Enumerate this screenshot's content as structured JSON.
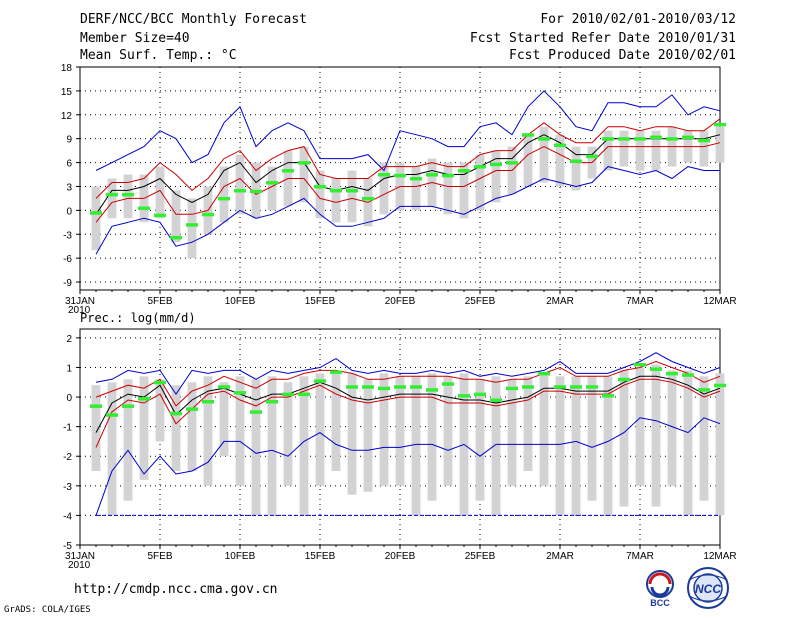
{
  "header": {
    "title": "DERF/NCC/BCC Monthly Forecast",
    "member_size": "Member Size=40",
    "variable": "Mean Surf. Temp.: °C",
    "period": "For 2010/02/01-2010/03/12",
    "started": "Fcst Started Refer Date 2010/01/31",
    "produced": "Fcst Produced Date 2010/02/01"
  },
  "footer": {
    "url": "http://cmdp.ncc.cma.gov.cn",
    "grads": "GrADS: COLA/IGES",
    "logo_bcc": "BCC",
    "logo_ncc": "NCC"
  },
  "colors": {
    "envelope": "#0000cc",
    "spread": "#cc0000",
    "mean": "#000000",
    "box": "#d3d3d6",
    "median": "#33ee33"
  },
  "chart_data": [
    {
      "type": "box_ensemble",
      "title": "Mean Surf. Temp.: °C",
      "ylim": [
        -10,
        18
      ],
      "yticks": [
        -9,
        -6,
        -3,
        0,
        3,
        6,
        9,
        12,
        15,
        18
      ],
      "xlim_days": [
        0,
        40
      ],
      "xtick_days": [
        0,
        5,
        10,
        15,
        20,
        25,
        30,
        35,
        40
      ],
      "xtick_labels": [
        "31JAN",
        "5FEB",
        "10FEB",
        "15FEB",
        "20FEB",
        "25FEB",
        "2MAR",
        "7MAR",
        "12MAR"
      ],
      "year_label": "2010",
      "days": [
        1,
        2,
        3,
        4,
        5,
        6,
        7,
        8,
        9,
        10,
        11,
        12,
        13,
        14,
        15,
        16,
        17,
        18,
        19,
        20,
        21,
        22,
        23,
        24,
        25,
        26,
        27,
        28,
        29,
        30,
        31,
        32,
        33,
        34,
        35,
        36,
        37,
        38,
        39,
        40
      ],
      "max": [
        5,
        6,
        7,
        8,
        10,
        9,
        6,
        7,
        11,
        13,
        8,
        10,
        11,
        10,
        6.5,
        6.5,
        6.5,
        7,
        5,
        10,
        9.5,
        9,
        8,
        8,
        10.5,
        11,
        9.5,
        13,
        15,
        13,
        10.5,
        10,
        13.5,
        13.5,
        13,
        13,
        14.5,
        12,
        13,
        12.5
      ],
      "min": [
        -5.5,
        -2,
        -1.5,
        -1,
        -1.5,
        -4.5,
        -4,
        -3,
        -1.5,
        0,
        -1,
        -0.5,
        0.5,
        1.5,
        -0.5,
        -2,
        -2,
        -1.5,
        -1,
        0.5,
        0.5,
        0.5,
        0,
        -0.5,
        0.5,
        1.5,
        2,
        3,
        4,
        3.5,
        3,
        3.5,
        5.5,
        5,
        4.5,
        5,
        4,
        5.5,
        5,
        5
      ],
      "upper": [
        1.5,
        3.5,
        3.5,
        4,
        6,
        4.5,
        2.5,
        4,
        6.5,
        7.5,
        5,
        6.5,
        7.5,
        8,
        4.5,
        4,
        4,
        4,
        5.5,
        5.5,
        5.5,
        6,
        5.5,
        5.5,
        7,
        7.5,
        7.5,
        9.5,
        11,
        9.5,
        8.5,
        8.5,
        10.5,
        10.5,
        10,
        10.5,
        10.5,
        10,
        10,
        11.5
      ],
      "mean": [
        -0.5,
        2.5,
        2.5,
        3,
        4,
        2,
        1,
        2,
        5,
        6,
        3.5,
        5,
        6,
        6,
        3,
        2.5,
        3,
        2.5,
        4,
        4.5,
        4.5,
        5,
        4.5,
        4.5,
        5.5,
        6.5,
        6.5,
        8.5,
        9.5,
        8.5,
        7,
        7,
        9,
        9,
        9,
        9,
        9,
        9,
        9,
        9.5
      ],
      "lower": [
        -1.5,
        1,
        1.5,
        1.5,
        2.5,
        -0.5,
        -0.5,
        0,
        3,
        4,
        2,
        3,
        4,
        4,
        1.5,
        1,
        1.5,
        1,
        2,
        3,
        3,
        3.5,
        3,
        3,
        4,
        5,
        5,
        7,
        8,
        7,
        6,
        6,
        8,
        8,
        8,
        8,
        8,
        8,
        8,
        8.5
      ],
      "box_top": [
        3,
        4,
        4.5,
        4.5,
        5.5,
        2.5,
        1.5,
        3,
        5.5,
        7,
        6,
        5.5,
        7.5,
        8,
        5,
        4,
        5,
        4,
        6,
        6,
        5.5,
        6.5,
        6,
        6,
        7,
        7.5,
        8,
        9.5,
        10.5,
        9.5,
        8,
        8,
        10,
        10,
        10,
        10,
        10.5,
        10,
        10,
        10.5
      ],
      "box_bottom": [
        -5,
        -1,
        -1,
        -1.5,
        -1,
        -4,
        -6,
        -3,
        -1.5,
        -0.5,
        -1,
        0,
        0.5,
        1,
        -1,
        -1.5,
        -1.5,
        -2,
        -0.5,
        0,
        0,
        0.5,
        -0.5,
        -1,
        0,
        1,
        2,
        3,
        3.5,
        3,
        2.5,
        4,
        5,
        5.5,
        5,
        5,
        5.5,
        6,
        5.5,
        6
      ],
      "median": [
        -0.3,
        2,
        2,
        0.3,
        -0.6,
        -3.4,
        -1.8,
        -0.5,
        1.5,
        2.5,
        2.4,
        3.5,
        5,
        6,
        3,
        2.5,
        2.5,
        1.5,
        4.5,
        4.4,
        4,
        4.5,
        4.4,
        5,
        5.5,
        5.8,
        6,
        9.5,
        9,
        8.2,
        6.2,
        6.8,
        9,
        9,
        9,
        9.2,
        9,
        9.2,
        8.8,
        10.8
      ]
    },
    {
      "type": "box_ensemble",
      "title": "Prec.: log(mm/d)",
      "ylim": [
        -5,
        2.3
      ],
      "yticks": [
        -5,
        -4,
        -3,
        -2,
        -1,
        0,
        1,
        2
      ],
      "xlim_days": [
        0,
        40
      ],
      "xtick_days": [
        0,
        5,
        10,
        15,
        20,
        25,
        30,
        35,
        40
      ],
      "xtick_labels": [
        "31JAN",
        "5FEB",
        "10FEB",
        "15FEB",
        "20FEB",
        "25FEB",
        "2MAR",
        "7MAR",
        "12MAR"
      ],
      "year_label": "2010",
      "days": [
        1,
        2,
        3,
        4,
        5,
        6,
        7,
        8,
        9,
        10,
        11,
        12,
        13,
        14,
        15,
        16,
        17,
        18,
        19,
        20,
        21,
        22,
        23,
        24,
        25,
        26,
        27,
        28,
        29,
        30,
        31,
        32,
        33,
        34,
        35,
        36,
        37,
        38,
        39,
        40
      ],
      "max": [
        0.5,
        0.6,
        0.9,
        0.8,
        0.9,
        0.1,
        0.9,
        0.8,
        0.9,
        0.9,
        0.6,
        0.9,
        0.8,
        0.9,
        1.0,
        1.3,
        0.9,
        0.8,
        0.9,
        0.8,
        0.8,
        0.9,
        0.8,
        0.9,
        0.7,
        0.8,
        0.7,
        0.8,
        0.9,
        1.2,
        0.8,
        0.8,
        0.8,
        1.0,
        1.2,
        1.5,
        1.2,
        1.0,
        0.8,
        1.0
      ],
      "min": [
        -4,
        -2.5,
        -1.8,
        -2.6,
        -2.0,
        -2.6,
        -2.5,
        -2.2,
        -1.5,
        -1.5,
        -1.9,
        -1.8,
        -2.0,
        -1.5,
        -1.2,
        -1.6,
        -1.8,
        -1.8,
        -1.7,
        -1.7,
        -1.6,
        -1.6,
        -1.8,
        -1.6,
        -2.0,
        -1.6,
        -1.6,
        -1.6,
        -1.6,
        -1.6,
        -1.5,
        -1.7,
        -1.5,
        -1.2,
        -0.7,
        -0.8,
        -1.0,
        -1.2,
        -0.7,
        -0.9
      ],
      "upper": [
        0,
        0.2,
        0.4,
        0.3,
        0.6,
        -0.3,
        0.2,
        0.4,
        0.7,
        0.5,
        0.3,
        0.6,
        0.6,
        0.8,
        0.9,
        0.9,
        0.8,
        0.6,
        0.6,
        0.7,
        0.7,
        0.7,
        0.7,
        0.6,
        0.6,
        0.5,
        0.6,
        0.6,
        0.8,
        1.0,
        0.7,
        0.7,
        0.7,
        0.9,
        1.0,
        1.2,
        1.0,
        0.8,
        0.5,
        0.7
      ],
      "mean": [
        -1.2,
        -0.2,
        0.1,
        0,
        0.4,
        -0.6,
        -0.1,
        0.2,
        0.3,
        0.1,
        -0.1,
        0.1,
        0.1,
        0.3,
        0.5,
        0.3,
        0,
        -0.1,
        0,
        0.1,
        0.1,
        0.1,
        0,
        -0.1,
        -0.1,
        -0.2,
        -0.1,
        0,
        0.3,
        0.3,
        0.2,
        0.2,
        0.2,
        0.5,
        0.7,
        0.7,
        0.6,
        0.4,
        0.1,
        0.3
      ],
      "lower": [
        -1.7,
        -0.5,
        -0.1,
        -0.2,
        0.1,
        -0.9,
        -0.4,
        0.1,
        0.2,
        -0.1,
        -0.3,
        0,
        0,
        0.2,
        0.4,
        0.1,
        -0.1,
        -0.2,
        -0.1,
        0,
        0,
        0,
        -0.2,
        -0.2,
        -0.2,
        -0.3,
        -0.2,
        -0.1,
        0.2,
        0.2,
        0.1,
        0.1,
        0.1,
        0.4,
        0.6,
        0.6,
        0.5,
        0.3,
        0,
        0.2
      ],
      "box_top": [
        0.4,
        0.5,
        0.6,
        0.7,
        0.6,
        0.4,
        0.5,
        0.7,
        0.5,
        0.7,
        0.6,
        0.7,
        0.5,
        0.7,
        0.8,
        0.8,
        0.8,
        0.6,
        0.8,
        0.7,
        0.7,
        0.8,
        0.7,
        0.8,
        0.6,
        0.7,
        0.6,
        0.7,
        0.8,
        0.7,
        0.7,
        0.7,
        0.7,
        0.9,
        1.0,
        1.1,
        0.9,
        0.9,
        0.7,
        0.8
      ],
      "box_bottom": [
        -2.5,
        -4,
        -3.5,
        -2.8,
        -1.5,
        -2.5,
        -2.5,
        -3,
        -2,
        -3,
        -4,
        -4,
        -3,
        -4,
        -3,
        -2.5,
        -3.3,
        -3.2,
        -3,
        -3,
        -4,
        -3.5,
        -3,
        -4,
        -3.5,
        -4,
        -3,
        -2.5,
        -3,
        -4,
        -4,
        -3.5,
        -4,
        -3.7,
        -3,
        -3.7,
        -3,
        -4,
        -3.5,
        -4
      ],
      "median": [
        -0.3,
        -0.6,
        -0.3,
        -0.05,
        0.5,
        -0.55,
        -0.4,
        -0.15,
        0.35,
        0.15,
        -0.5,
        -0.15,
        0.1,
        0.1,
        0.55,
        0.85,
        0.35,
        0.35,
        0.3,
        0.35,
        0.35,
        0.25,
        0.45,
        0.05,
        0.1,
        -0.1,
        0.3,
        0.35,
        0.8,
        0.35,
        0.35,
        0.35,
        0.05,
        0.6,
        1.1,
        0.95,
        0.8,
        0.75,
        0.25,
        0.4
      ]
    }
  ]
}
